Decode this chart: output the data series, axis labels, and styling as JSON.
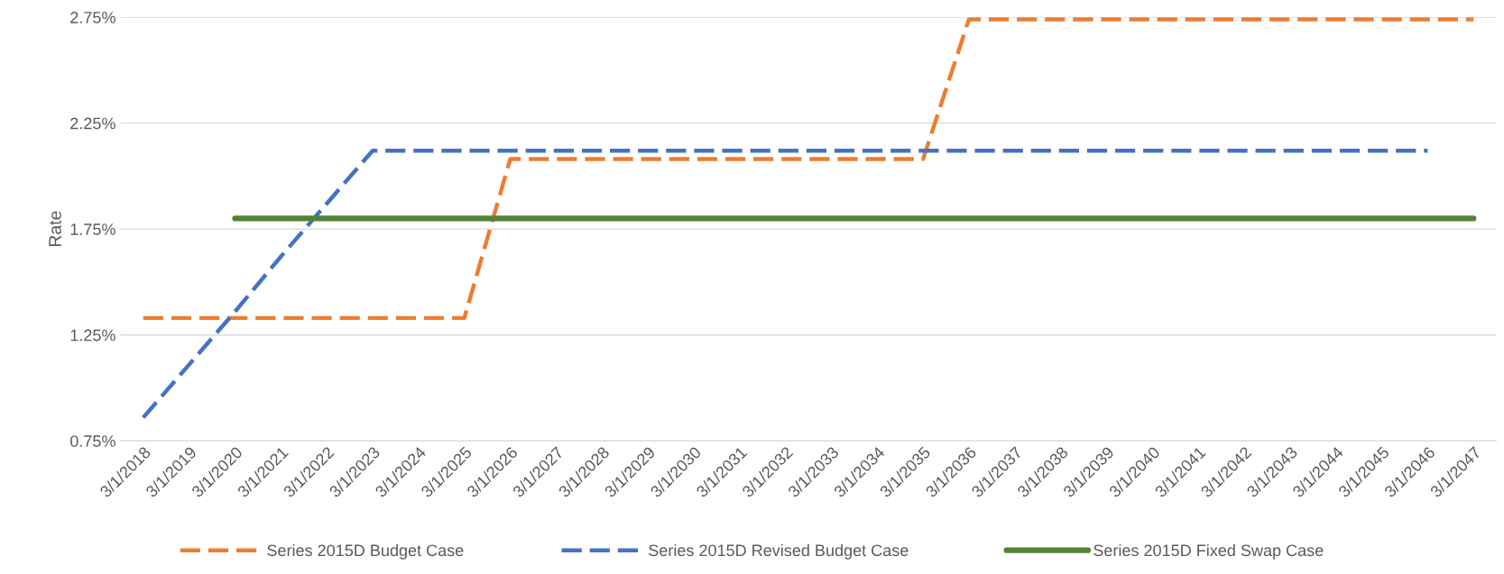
{
  "chart_data": {
    "type": "line",
    "ylabel": "Rate",
    "categories": [
      "3/1/2018",
      "3/1/2019",
      "3/1/2020",
      "3/1/2021",
      "3/1/2022",
      "3/1/2023",
      "3/1/2024",
      "3/1/2025",
      "3/1/2026",
      "3/1/2027",
      "3/1/2028",
      "3/1/2029",
      "3/1/2030",
      "3/1/2031",
      "3/1/2032",
      "3/1/2033",
      "3/1/2034",
      "3/1/2035",
      "3/1/2036",
      "3/1/2037",
      "3/1/2038",
      "3/1/2039",
      "3/1/2040",
      "3/1/2041",
      "3/1/2042",
      "3/1/2043",
      "3/1/2044",
      "3/1/2045",
      "3/1/2046",
      "3/1/2047"
    ],
    "series": [
      {
        "name": "Series 2015D Budget Case",
        "color": "#ed7d31",
        "line_style": "dashed",
        "values": [
          1.33,
          1.33,
          1.33,
          1.33,
          1.33,
          1.33,
          1.33,
          1.33,
          2.08,
          2.08,
          2.08,
          2.08,
          2.08,
          2.08,
          2.08,
          2.08,
          2.08,
          2.08,
          2.74,
          2.74,
          2.74,
          2.74,
          2.74,
          2.74,
          2.74,
          2.74,
          2.74,
          2.74,
          2.74,
          2.74
        ]
      },
      {
        "name": "Series 2015D Revised Budget Case",
        "color": "#4472c4",
        "line_style": "dashed",
        "values": [
          0.86,
          1.11,
          1.36,
          1.62,
          1.87,
          2.12,
          2.12,
          2.12,
          2.12,
          2.12,
          2.12,
          2.12,
          2.12,
          2.12,
          2.12,
          2.12,
          2.12,
          2.12,
          2.12,
          2.12,
          2.12,
          2.12,
          2.12,
          2.12,
          2.12,
          2.12,
          2.12,
          2.12,
          2.12,
          null
        ]
      },
      {
        "name": "Series 2015D Fixed Swap Case",
        "color": "#548235",
        "line_style": "solid",
        "values": [
          null,
          null,
          1.8,
          1.8,
          1.8,
          1.8,
          1.8,
          1.8,
          1.8,
          1.8,
          1.8,
          1.8,
          1.8,
          1.8,
          1.8,
          1.8,
          1.8,
          1.8,
          1.8,
          1.8,
          1.8,
          1.8,
          1.8,
          1.8,
          1.8,
          1.8,
          1.8,
          1.8,
          1.8,
          1.8
        ]
      }
    ],
    "ylim": [
      0.75,
      2.75
    ],
    "yticks": [
      {
        "value": 0.75,
        "label": "0.75%"
      },
      {
        "value": 1.25,
        "label": "1.25%"
      },
      {
        "value": 1.75,
        "label": "1.75%"
      },
      {
        "value": 2.25,
        "label": "2.25%"
      },
      {
        "value": 2.75,
        "label": "2.75%"
      }
    ],
    "grid": "y",
    "legend": "bottom"
  }
}
